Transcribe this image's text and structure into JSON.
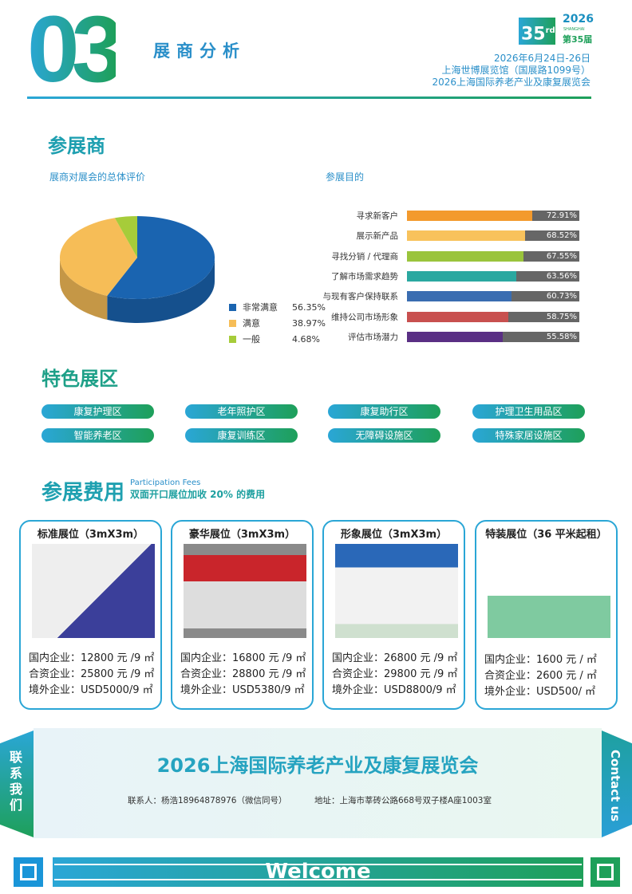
{
  "header": {
    "section_number": "03",
    "section_title": "展商分析",
    "badge_number": "35",
    "badge_sup": "rd",
    "badge_year": "2026",
    "badge_city": "SHANGHAI",
    "badge_edition": "第35届",
    "date": "2026年6月24日-26日",
    "venue": "上海世博展览馆（国展路1099号）",
    "event": "2026上海国际养老产业及康复展览会"
  },
  "exhibitors": {
    "title": "参展商",
    "pie_title": "展商对展会的总体评价",
    "bar_title": "参展目的"
  },
  "chart_data": [
    {
      "type": "pie",
      "title": "展商对展会的总体评价",
      "labels": [
        "非常满意",
        "满意",
        "一般"
      ],
      "values": [
        56.35,
        38.97,
        4.68
      ],
      "value_labels": [
        "56.35%",
        "38.97%",
        "4.68%"
      ],
      "colors": [
        "#1a64b0",
        "#f6bd57",
        "#a6cc3a"
      ],
      "legend": "bottom-right",
      "style": "3d"
    },
    {
      "type": "bar",
      "orientation": "horizontal",
      "title": "参展目的",
      "categories": [
        "寻求新客户",
        "展示新产品",
        "寻找分销 / 代理商",
        "了解市场需求趋势",
        "与现有客户保持联系",
        "维持公司市场形象",
        "评估市场潜力"
      ],
      "values": [
        72.91,
        68.52,
        67.55,
        63.56,
        60.73,
        58.75,
        55.58
      ],
      "value_labels": [
        "72.91%",
        "68.52%",
        "67.55%",
        "63.56%",
        "60.73%",
        "58.75%",
        "55.58%"
      ],
      "colors": [
        "#f39a2d",
        "#f8c25c",
        "#9ac43c",
        "#2aa8a0",
        "#3a6db1",
        "#c8504f",
        "#5a2f84"
      ],
      "xlim": [
        0,
        100
      ]
    }
  ],
  "zones": {
    "title": "特色展区",
    "items": [
      "康复护理区",
      "老年照护区",
      "康复助行区",
      "护理卫生用品区",
      "智能养老区",
      "康复训练区",
      "无障碍设施区",
      "特殊家居设施区"
    ]
  },
  "fees": {
    "title": "参展费用",
    "title_en": "Participation Fees",
    "note": "双面开口展位加收 20% 的费用",
    "cards": [
      {
        "title": "标准展位（3mX3m）",
        "prices": [
          "国内企业：12800 元 /9 ㎡",
          "合资企业：25800 元 /9 ㎡",
          "境外企业：USD5000/9 ㎡"
        ]
      },
      {
        "title": "豪华展位（3mX3m）",
        "prices": [
          "国内企业：16800 元 /9 ㎡",
          "合资企业：28800 元 /9 ㎡",
          "境外企业：USD5380/9 ㎡"
        ]
      },
      {
        "title": "形象展位（3mX3m）",
        "prices": [
          "国内企业：26800 元 /9 ㎡",
          "合资企业：29800 元 /9 ㎡",
          "境外企业：USD8800/9 ㎡"
        ]
      },
      {
        "title": "特装展位（36 平米起租）",
        "prices": [
          "国内企业：1600 元 / ㎡",
          "合资企业：2600 元 / ㎡",
          "境外企业：USD500/ ㎡"
        ]
      }
    ]
  },
  "contact": {
    "side_left": "联系我们",
    "side_right": "Contact us",
    "title": "2026上海国际养老产业及康复展览会",
    "person": "联系人：杨浩18964878976（微信同号）",
    "address": "地址：上海市莘砖公路668号双子楼A座1003室"
  },
  "footer": {
    "welcome": "Welcome"
  }
}
